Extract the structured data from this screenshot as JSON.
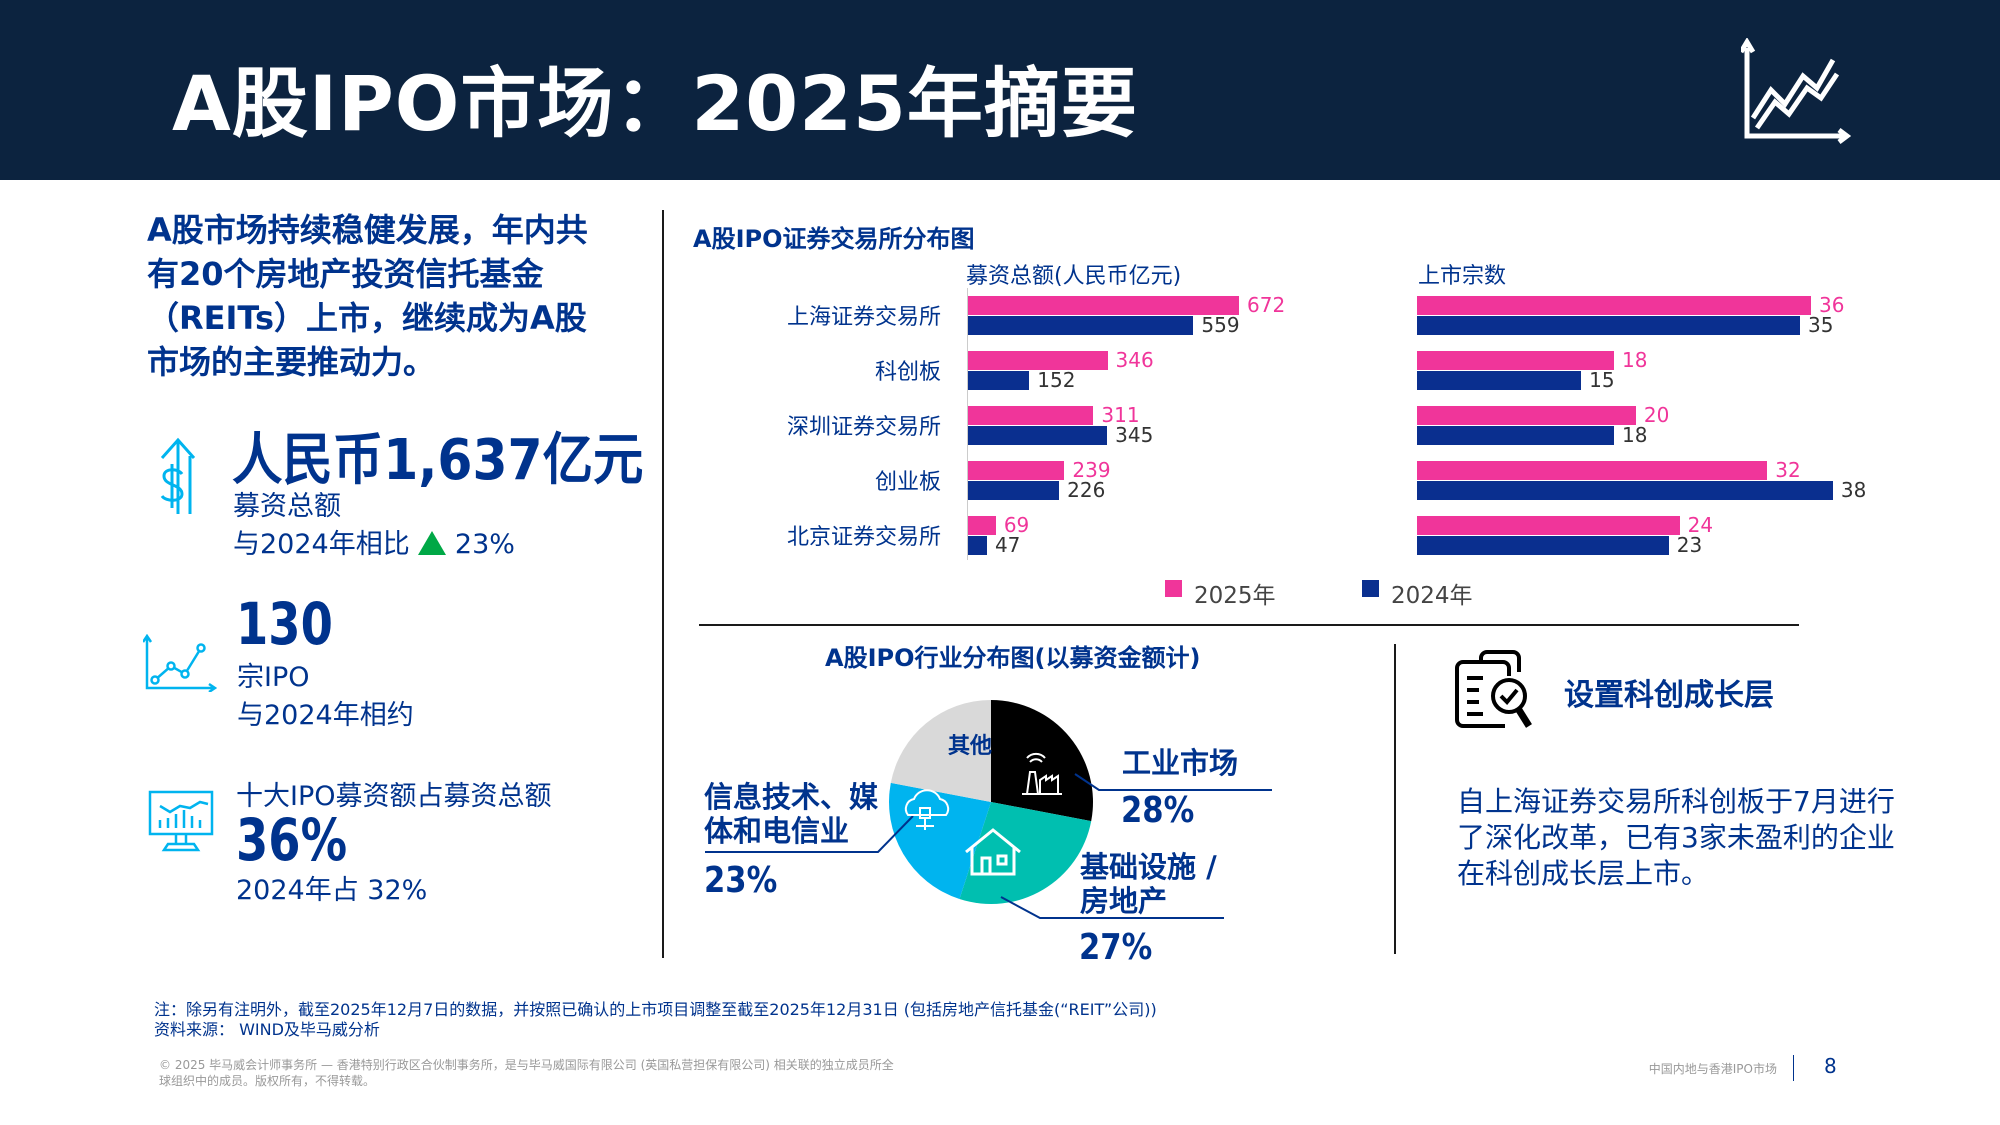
{
  "header": {
    "title": "A股IPO市场：2025年摘要",
    "icon": "trend-chart-icon"
  },
  "left": {
    "lead": "A股市场持续稳健发展，年内共有20个房地产投资信托基金（REITs）上市，继续成为A股市场的主要推动力。",
    "stat1": {
      "value": "人民币1,637亿元",
      "label": "募资总额",
      "compare": "与2024年相比",
      "change": "23%",
      "trend": "up"
    },
    "stat2": {
      "value": "130",
      "label": "宗IPO",
      "compare": "与2024年相约"
    },
    "stat3": {
      "label": "十大IPO募资额占募资总额",
      "value": "36%",
      "compare": "2024年占 32%"
    }
  },
  "colors": {
    "y2025": "#f0359a",
    "y2024": "#0a2f8f",
    "industrial": "#000000",
    "infra": "#00bfb0",
    "it": "#00b4ef",
    "other": "#d9d9d9",
    "up": "#00a846"
  },
  "chart_data": [
    {
      "type": "bar",
      "title": "A股IPO证券交易所分布图",
      "categories": [
        "上海证券交易所",
        "科创板",
        "深圳证券交易所",
        "创业板",
        "北京证券交易所"
      ],
      "panels": [
        {
          "title": "募资总额(人民币亿元)",
          "series": [
            {
              "name": "2025年",
              "values": [
                672,
                346,
                311,
                239,
                69
              ]
            },
            {
              "name": "2024年",
              "values": [
                559,
                152,
                345,
                226,
                47
              ]
            }
          ]
        },
        {
          "title": "上市宗数",
          "series": [
            {
              "name": "2025年",
              "values": [
                36,
                18,
                20,
                32,
                24
              ]
            },
            {
              "name": "2024年",
              "values": [
                35,
                15,
                18,
                38,
                23
              ]
            }
          ]
        }
      ],
      "legend": [
        "2025年",
        "2024年"
      ],
      "legend_position": "bottom"
    },
    {
      "type": "pie",
      "title": "A股IPO行业分布图(以募资金额计)",
      "slices": [
        {
          "label": "工业市场",
          "value": 28,
          "pct_label": "28%"
        },
        {
          "label": "基础设施 / 房地产",
          "value": 27,
          "pct_label": "27%"
        },
        {
          "label": "信息技术、媒体和电信业",
          "value": 23,
          "pct_label": "23%"
        },
        {
          "label": "其他",
          "value": 22
        }
      ]
    }
  ],
  "right": {
    "title": "设置科创成长层",
    "body": "自上海证券交易所科创板于7月进行了深化改革，已有3家未盈利的企业在科创成长层上市。"
  },
  "footer": {
    "note": "注：除另有注明外，截至2025年12月7日的数据，并按照已确认的上市项目调整至截至2025年12月31日 (包括房地产信托基金(“REIT”公司))",
    "source": "资料来源： WIND及毕马威分析",
    "copyright1": "© 2025 毕马威会计师事务所 — 香港特别行政区合伙制事务所，是与毕马威国际有限公司 (英国私营担保有限公司) 相关联的独立成员所全",
    "copyright2": "球组织中的成员。版权所有，不得转载。",
    "section": "中国内地与香港IPO市场",
    "page": "8"
  }
}
